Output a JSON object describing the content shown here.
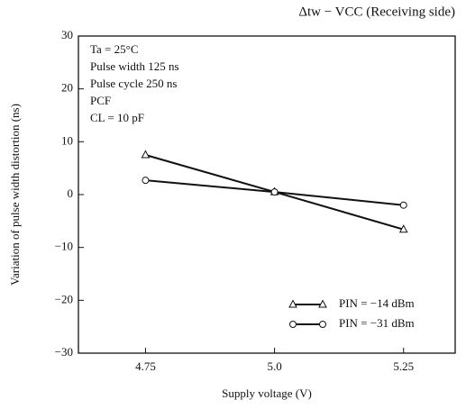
{
  "chart_data": {
    "type": "line",
    "title": "Δtw − VCC (Receiving side)",
    "x_label": "Supply voltage (V)",
    "y_label": "Variation of pulse width distortion (ns)",
    "annotations": [
      "Ta = 25°C",
      "Pulse width 125 ns",
      "Pulse cycle 250 ns",
      "PCF",
      "CL = 10 pF"
    ],
    "x": [
      4.75,
      5.0,
      5.25
    ],
    "series": [
      {
        "name": "PIN = −14 dBm",
        "color": "#111111",
        "marker": "triangle",
        "values": [
          7.5,
          0.5,
          -6.6
        ]
      },
      {
        "name": "PIN = −31 dBm",
        "color": "#111111",
        "marker": "circle",
        "values": [
          2.7,
          0.5,
          -2.0
        ]
      }
    ],
    "xlim": [
      4.62,
      5.35
    ],
    "ylim": [
      -30,
      30
    ],
    "xticks": [
      4.75,
      {
        "value": 5,
        "label": "5.0"
      },
      5.25
    ],
    "yticks": [
      {
        "value": -30,
        "label": "−30"
      },
      {
        "value": -20,
        "label": "−20"
      },
      {
        "value": -10,
        "label": "−10"
      },
      0,
      10,
      20,
      30
    ],
    "legend": "lower right"
  }
}
